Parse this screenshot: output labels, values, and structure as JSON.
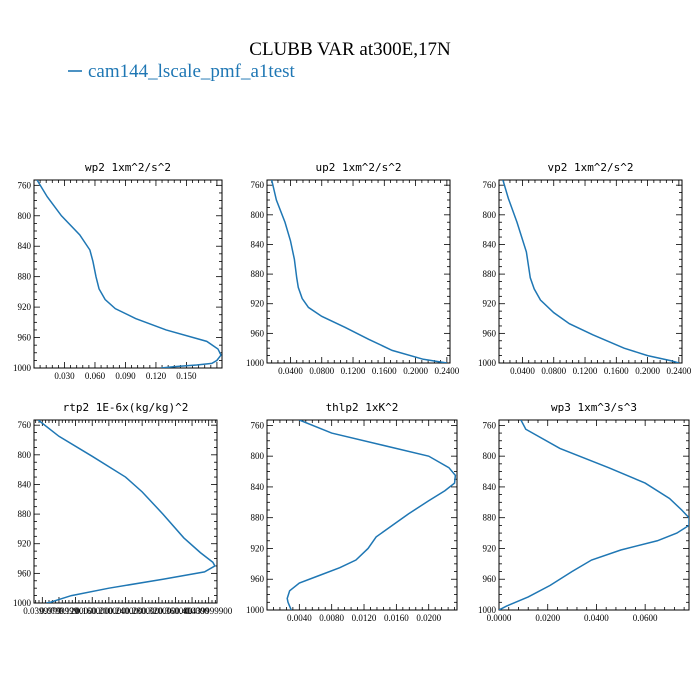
{
  "title": "CLUBB VAR at300E,17N",
  "legend": {
    "label": "cam144_lscale_pmf_a1test",
    "color": "#1f77b4"
  },
  "chart_data": [
    {
      "type": "line",
      "title": "wp2  1xm^2/s^2",
      "ylim": [
        1000,
        753
      ],
      "yticks": [
        "760",
        "800",
        "840",
        "880",
        "920",
        "960",
        "1000"
      ],
      "xlim": [
        0,
        0.185
      ],
      "xticks": [
        {
          "v": 0.03,
          "label": "0.030"
        },
        {
          "v": 0.06,
          "label": "0.060"
        },
        {
          "v": 0.09,
          "label": "0.090"
        },
        {
          "v": 0.12,
          "label": "0.120"
        },
        {
          "v": 0.15,
          "label": "0.150"
        }
      ],
      "series": [
        {
          "x": [
            0.003,
            0.013,
            0.027,
            0.045,
            0.055,
            0.058,
            0.061,
            0.064,
            0.07,
            0.08,
            0.1,
            0.13,
            0.17,
            0.181,
            0.184,
            0.18,
            0.175,
            0.16,
            0.14,
            0.125
          ],
          "y": [
            753,
            775,
            800,
            825,
            845,
            860,
            880,
            896,
            910,
            922,
            935,
            950,
            965,
            975,
            983,
            990,
            994,
            996,
            998,
            1000
          ]
        }
      ]
    },
    {
      "type": "line",
      "title": "up2  1xm^2/s^2",
      "ylim": [
        1000,
        753
      ],
      "yticks": [
        "760",
        "800",
        "840",
        "880",
        "920",
        "960",
        "1000"
      ],
      "xlim": [
        0.01,
        0.244
      ],
      "xticks": [
        {
          "v": 0.04,
          "label": "0.0400"
        },
        {
          "v": 0.08,
          "label": "0.0800"
        },
        {
          "v": 0.12,
          "label": "0.1200"
        },
        {
          "v": 0.16,
          "label": "0.1600"
        },
        {
          "v": 0.2,
          "label": "0.2000"
        },
        {
          "v": 0.24,
          "label": "0.2400"
        }
      ],
      "series": [
        {
          "x": [
            0.016,
            0.022,
            0.033,
            0.04,
            0.045,
            0.048,
            0.05,
            0.055,
            0.063,
            0.08,
            0.11,
            0.14,
            0.17,
            0.21,
            0.24
          ],
          "y": [
            753,
            780,
            810,
            835,
            860,
            885,
            898,
            913,
            925,
            937,
            952,
            968,
            983,
            995,
            1000
          ]
        }
      ]
    },
    {
      "type": "line",
      "title": "vp2  1xm^2/s^2",
      "ylim": [
        1000,
        753
      ],
      "yticks": [
        "760",
        "800",
        "840",
        "880",
        "920",
        "960",
        "1000"
      ],
      "xlim": [
        0.01,
        0.244
      ],
      "xticks": [
        {
          "v": 0.04,
          "label": "0.0400"
        },
        {
          "v": 0.08,
          "label": "0.0800"
        },
        {
          "v": 0.12,
          "label": "0.1200"
        },
        {
          "v": 0.16,
          "label": "0.1600"
        },
        {
          "v": 0.2,
          "label": "0.2000"
        },
        {
          "v": 0.24,
          "label": "0.2400"
        }
      ],
      "series": [
        {
          "x": [
            0.015,
            0.022,
            0.033,
            0.045,
            0.05,
            0.055,
            0.063,
            0.08,
            0.1,
            0.13,
            0.17,
            0.2,
            0.23,
            0.24
          ],
          "y": [
            753,
            778,
            810,
            850,
            885,
            900,
            915,
            932,
            947,
            962,
            980,
            990,
            997,
            1000
          ]
        }
      ]
    },
    {
      "type": "line",
      "title": "rtp2  1E-6x(kg/kg)^2",
      "ylim": [
        1000,
        753
      ],
      "yticks": [
        "760",
        "800",
        "840",
        "880",
        "920",
        "960",
        "1000"
      ],
      "xlim": [
        0.02,
        0.46
      ],
      "xticks": [
        {
          "v": 0.04,
          "label": "0.0399999"
        },
        {
          "v": 0.08,
          "label": "0.0799999"
        },
        {
          "v": 0.12,
          "label": "0.120000"
        },
        {
          "v": 0.16,
          "label": "0.160000"
        },
        {
          "v": 0.2,
          "label": "0.200000"
        },
        {
          "v": 0.24,
          "label": "0.240000"
        },
        {
          "v": 0.28,
          "label": "0.280000"
        },
        {
          "v": 0.32,
          "label": "0.320000"
        },
        {
          "v": 0.36,
          "label": "0.360000"
        },
        {
          "v": 0.4,
          "label": "0.400000"
        },
        {
          "v": 0.44,
          "label": "0.439999900"
        }
      ],
      "series": [
        {
          "x": [
            0.03,
            0.08,
            0.16,
            0.24,
            0.28,
            0.33,
            0.38,
            0.42,
            0.45,
            0.455,
            0.43,
            0.33,
            0.2,
            0.11,
            0.07,
            0.06,
            0.05
          ],
          "y": [
            753,
            775,
            802,
            830,
            850,
            880,
            912,
            932,
            945,
            950,
            958,
            968,
            980,
            990,
            997,
            999,
            1000
          ]
        }
      ]
    },
    {
      "type": "line",
      "title": "thlp2  1xK^2",
      "ylim": [
        1000,
        753
      ],
      "yticks": [
        "760",
        "800",
        "840",
        "880",
        "920",
        "960",
        "1000"
      ],
      "xlim": [
        0,
        0.0235
      ],
      "xticks": [
        {
          "v": 0.004,
          "label": "0.0040"
        },
        {
          "v": 0.008,
          "label": "0.0080"
        },
        {
          "v": 0.012,
          "label": "0.0120"
        },
        {
          "v": 0.016,
          "label": "0.0160"
        },
        {
          "v": 0.02,
          "label": "0.0200"
        }
      ],
      "series": [
        {
          "x": [
            0.004,
            0.008,
            0.014,
            0.02,
            0.0225,
            0.0233,
            0.0232,
            0.022,
            0.02,
            0.0175,
            0.0155,
            0.0135,
            0.0125,
            0.011,
            0.009,
            0.0065,
            0.004,
            0.0028,
            0.0025,
            0.0026,
            0.0028,
            0.003
          ],
          "y": [
            753,
            770,
            785,
            800,
            815,
            825,
            835,
            845,
            858,
            875,
            890,
            905,
            920,
            935,
            945,
            955,
            965,
            975,
            985,
            990,
            995,
            1000
          ]
        }
      ]
    },
    {
      "type": "line",
      "title": "wp3  1xm^3/s^3",
      "ylim": [
        1000,
        753
      ],
      "yticks": [
        "760",
        "800",
        "840",
        "880",
        "920",
        "960",
        "1000"
      ],
      "xlim": [
        0,
        0.078
      ],
      "xticks": [
        {
          "v": 0.0,
          "label": "0.0000"
        },
        {
          "v": 0.02,
          "label": "0.0200"
        },
        {
          "v": 0.04,
          "label": "0.0400"
        },
        {
          "v": 0.06,
          "label": "0.0600"
        }
      ],
      "series": [
        {
          "x": [
            0.009,
            0.011,
            0.025,
            0.045,
            0.06,
            0.07,
            0.075,
            0.078,
            0.078,
            0.073,
            0.065,
            0.05,
            0.038,
            0.03,
            0.021,
            0.012,
            0.003,
            0.0
          ],
          "y": [
            753,
            765,
            790,
            815,
            835,
            855,
            870,
            880,
            890,
            900,
            910,
            922,
            935,
            950,
            968,
            983,
            995,
            1000
          ]
        }
      ]
    }
  ]
}
